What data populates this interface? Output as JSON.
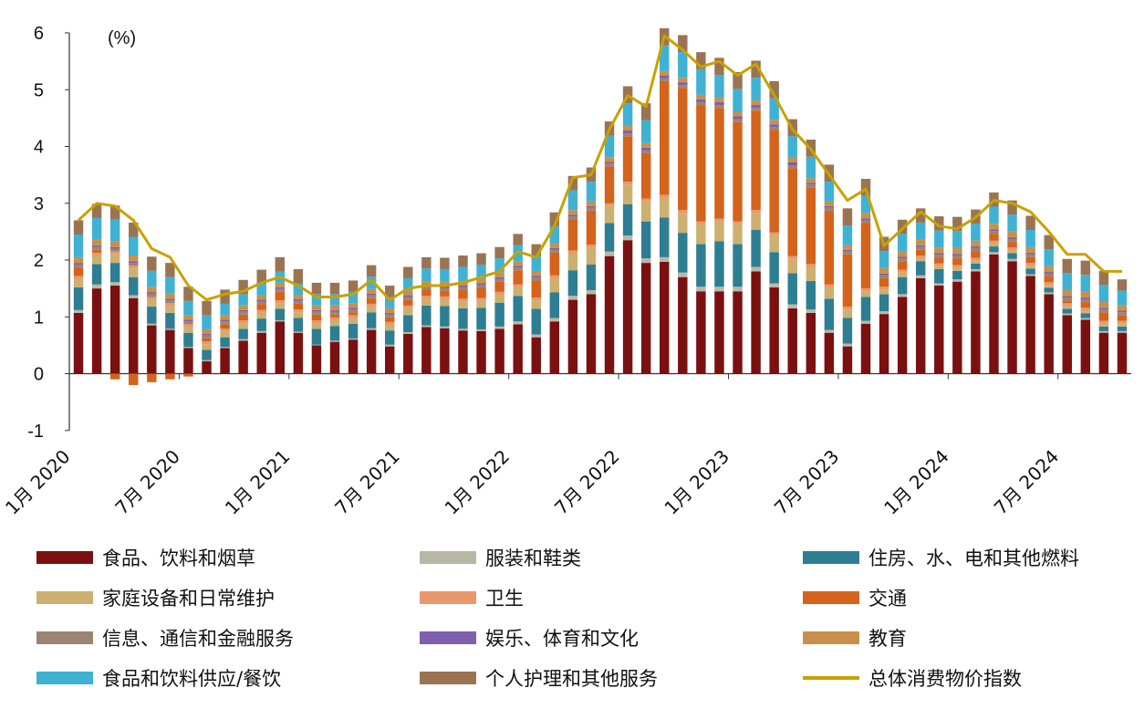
{
  "chart_data": {
    "type": "bar",
    "stacked": true,
    "unit": "(%)",
    "ylim": [
      -1,
      6
    ],
    "yticks": [
      -1,
      0,
      1,
      2,
      3,
      4,
      5,
      6
    ],
    "grid": false,
    "legend_position": "bottom",
    "x_tick_labels": [
      "1月 2020",
      "7月 2020",
      "1月 2021",
      "7月 2021",
      "1月 2022",
      "7月 2022",
      "1月 2023",
      "7月 2023",
      "1月 2024",
      "7月 2024"
    ],
    "x_tick_indices": [
      0,
      6,
      12,
      18,
      24,
      30,
      36,
      42,
      48,
      54
    ],
    "months": [
      "2020-01",
      "2020-02",
      "2020-03",
      "2020-04",
      "2020-05",
      "2020-06",
      "2020-07",
      "2020-08",
      "2020-09",
      "2020-10",
      "2020-11",
      "2020-12",
      "2021-01",
      "2021-02",
      "2021-03",
      "2021-04",
      "2021-05",
      "2021-06",
      "2021-07",
      "2021-08",
      "2021-09",
      "2021-10",
      "2021-11",
      "2021-12",
      "2022-01",
      "2022-02",
      "2022-03",
      "2022-04",
      "2022-05",
      "2022-06",
      "2022-07",
      "2022-08",
      "2022-09",
      "2022-10",
      "2022-11",
      "2022-12",
      "2023-01",
      "2023-02",
      "2023-03",
      "2023-04",
      "2023-05",
      "2023-06",
      "2023-07",
      "2023-08",
      "2023-09",
      "2023-10",
      "2023-11",
      "2023-12",
      "2024-01",
      "2024-02",
      "2024-03",
      "2024-04",
      "2024-05",
      "2024-06",
      "2024-07",
      "2024-08",
      "2024-09",
      "2024-10"
    ],
    "series": [
      {
        "name": "食品、饮料和烟草",
        "color": "#7b1010",
        "values": [
          1.07,
          1.5,
          1.55,
          1.33,
          0.85,
          0.77,
          0.45,
          0.22,
          0.45,
          0.58,
          0.72,
          0.92,
          0.72,
          0.5,
          0.56,
          0.6,
          0.77,
          0.48,
          0.7,
          0.82,
          0.8,
          0.76,
          0.75,
          0.79,
          0.87,
          0.64,
          0.92,
          1.3,
          1.4,
          2.07,
          2.35,
          1.95,
          1.97,
          1.7,
          1.45,
          1.45,
          1.45,
          1.8,
          1.52,
          1.15,
          1.07,
          0.72,
          0.48,
          0.88,
          1.05,
          1.35,
          1.68,
          1.55,
          1.62,
          1.8,
          2.1,
          1.98,
          1.72,
          1.4,
          1.03,
          0.95,
          0.72,
          0.72
        ]
      },
      {
        "name": "服装和鞋类",
        "color": "#b9b8a6",
        "values": [
          0.05,
          0.07,
          0.06,
          0.05,
          0.03,
          0.02,
          0.02,
          0.02,
          0.02,
          0.03,
          0.03,
          0.02,
          0.02,
          0.01,
          0.02,
          0.02,
          0.03,
          0.03,
          0.03,
          0.03,
          0.03,
          0.03,
          0.03,
          0.04,
          0.05,
          0.05,
          0.06,
          0.07,
          0.07,
          0.08,
          0.08,
          0.08,
          0.08,
          0.08,
          0.08,
          0.08,
          0.08,
          0.08,
          0.07,
          0.07,
          0.06,
          0.05,
          0.05,
          0.05,
          0.05,
          0.05,
          0.05,
          0.04,
          0.04,
          0.04,
          0.04,
          0.04,
          0.03,
          0.03,
          0.03,
          0.03,
          0.03,
          0.03
        ]
      },
      {
        "name": "住房、水、电和其他燃料",
        "color": "#2e7e93",
        "values": [
          0.4,
          0.36,
          0.34,
          0.32,
          0.3,
          0.28,
          0.25,
          0.18,
          0.17,
          0.18,
          0.22,
          0.2,
          0.24,
          0.28,
          0.26,
          0.26,
          0.28,
          0.25,
          0.3,
          0.35,
          0.36,
          0.36,
          0.38,
          0.42,
          0.45,
          0.45,
          0.45,
          0.45,
          0.45,
          0.5,
          0.55,
          0.65,
          0.7,
          0.7,
          0.75,
          0.8,
          0.75,
          0.65,
          0.55,
          0.55,
          0.5,
          0.55,
          0.45,
          0.42,
          0.3,
          0.3,
          0.25,
          0.25,
          0.15,
          0.1,
          0.1,
          0.1,
          0.1,
          0.08,
          0.08,
          0.08,
          0.08,
          0.08
        ]
      },
      {
        "name": "家庭设备和日常维护",
        "color": "#ccb070",
        "values": [
          0.15,
          0.15,
          0.15,
          0.15,
          0.12,
          0.12,
          0.1,
          0.1,
          0.1,
          0.1,
          0.1,
          0.1,
          0.1,
          0.1,
          0.1,
          0.1,
          0.1,
          0.1,
          0.12,
          0.12,
          0.12,
          0.12,
          0.12,
          0.14,
          0.15,
          0.15,
          0.25,
          0.3,
          0.3,
          0.3,
          0.35,
          0.35,
          0.35,
          0.35,
          0.35,
          0.35,
          0.35,
          0.3,
          0.3,
          0.25,
          0.25,
          0.2,
          0.15,
          0.1,
          0.08,
          0.08,
          0.05,
          0.05,
          0.05,
          0.05,
          0.05,
          0.05,
          0.05,
          0.05,
          0.05,
          0.05,
          0.05,
          0.05
        ]
      },
      {
        "name": "卫生",
        "color": "#e8986a",
        "values": [
          0.05,
          0.05,
          0.05,
          0.05,
          0.05,
          0.05,
          0.05,
          0.05,
          0.05,
          0.05,
          0.05,
          0.05,
          0.05,
          0.05,
          0.05,
          0.05,
          0.05,
          0.05,
          0.05,
          0.05,
          0.05,
          0.05,
          0.05,
          0.05,
          0.05,
          0.05,
          0.05,
          0.05,
          0.05,
          0.05,
          0.05,
          0.05,
          0.05,
          0.05,
          0.05,
          0.05,
          0.05,
          0.05,
          0.05,
          0.05,
          0.05,
          0.05,
          0.05,
          0.05,
          0.05,
          0.05,
          0.05,
          0.05,
          0.05,
          0.05,
          0.05,
          0.05,
          0.05,
          0.05,
          0.05,
          0.05,
          0.05,
          0.05
        ]
      },
      {
        "name": "交通",
        "color": "#d4631c",
        "values": [
          0.15,
          0.05,
          -0.1,
          -0.2,
          -0.15,
          -0.1,
          -0.05,
          0.05,
          0.08,
          0.1,
          0.1,
          0.15,
          0.1,
          0.1,
          0.05,
          0.05,
          0.1,
          0.08,
          0.1,
          0.1,
          0.1,
          0.15,
          0.18,
          0.18,
          0.25,
          0.3,
          0.4,
          0.55,
          0.6,
          0.65,
          0.8,
          0.8,
          2.0,
          2.15,
          2.05,
          1.95,
          1.75,
          1.75,
          1.8,
          1.55,
          1.35,
          1.3,
          0.92,
          1.15,
          0.15,
          0.15,
          0.1,
          0.1,
          0.12,
          0.12,
          0.12,
          0.1,
          0.1,
          0.1,
          0.05,
          0.1,
          0.15,
          0.1
        ]
      },
      {
        "name": "信息、通信和金融服务",
        "color": "#9c8470",
        "values": [
          0.05,
          0.05,
          0.05,
          0.05,
          0.05,
          0.05,
          0.05,
          0.05,
          0.05,
          0.05,
          0.05,
          0.05,
          0.05,
          0.05,
          0.05,
          0.05,
          0.05,
          0.05,
          0.05,
          0.05,
          0.05,
          0.05,
          0.05,
          0.05,
          0.05,
          0.05,
          0.05,
          0.05,
          0.05,
          0.05,
          0.05,
          0.05,
          0.05,
          0.05,
          0.05,
          0.05,
          0.05,
          0.05,
          0.05,
          0.05,
          0.05,
          0.05,
          0.05,
          0.05,
          0.05,
          0.05,
          0.05,
          0.05,
          0.05,
          0.05,
          0.05,
          0.05,
          0.05,
          0.05,
          0.05,
          0.05,
          0.05,
          0.05
        ]
      },
      {
        "name": "娱乐、体育和文化",
        "color": "#7f5fae",
        "values": [
          0.03,
          0.03,
          0.03,
          0.03,
          0.03,
          0.03,
          0.03,
          0.03,
          0.03,
          0.03,
          0.03,
          0.03,
          0.03,
          0.03,
          0.03,
          0.03,
          0.03,
          0.03,
          0.03,
          0.03,
          0.03,
          0.03,
          0.03,
          0.03,
          0.03,
          0.03,
          0.03,
          0.03,
          0.03,
          0.03,
          0.05,
          0.05,
          0.05,
          0.05,
          0.05,
          0.05,
          0.05,
          0.05,
          0.05,
          0.05,
          0.03,
          0.03,
          0.03,
          0.03,
          0.03,
          0.03,
          0.03,
          0.03,
          0.03,
          0.03,
          0.03,
          0.03,
          0.03,
          0.03,
          0.03,
          0.03,
          0.03,
          0.03
        ]
      },
      {
        "name": "教育",
        "color": "#c8904a",
        "values": [
          0.1,
          0.1,
          0.1,
          0.1,
          0.1,
          0.1,
          0.08,
          0.08,
          0.08,
          0.08,
          0.08,
          0.08,
          0.08,
          0.08,
          0.08,
          0.08,
          0.08,
          0.08,
          0.08,
          0.08,
          0.08,
          0.08,
          0.08,
          0.08,
          0.08,
          0.08,
          0.08,
          0.08,
          0.08,
          0.08,
          0.08,
          0.08,
          0.08,
          0.08,
          0.08,
          0.08,
          0.08,
          0.08,
          0.08,
          0.08,
          0.08,
          0.08,
          0.08,
          0.1,
          0.1,
          0.1,
          0.1,
          0.1,
          0.1,
          0.1,
          0.1,
          0.1,
          0.1,
          0.1,
          0.1,
          0.1,
          0.1,
          0.1
        ]
      },
      {
        "name": "食品和饮料供应/餐饮",
        "color": "#3fb2d4",
        "values": [
          0.4,
          0.38,
          0.38,
          0.33,
          0.28,
          0.28,
          0.25,
          0.25,
          0.2,
          0.2,
          0.2,
          0.2,
          0.2,
          0.2,
          0.2,
          0.2,
          0.22,
          0.2,
          0.22,
          0.22,
          0.22,
          0.25,
          0.25,
          0.25,
          0.28,
          0.28,
          0.3,
          0.35,
          0.35,
          0.38,
          0.4,
          0.4,
          0.45,
          0.45,
          0.45,
          0.4,
          0.4,
          0.4,
          0.38,
          0.38,
          0.38,
          0.35,
          0.35,
          0.3,
          0.3,
          0.3,
          0.3,
          0.3,
          0.3,
          0.3,
          0.3,
          0.3,
          0.3,
          0.3,
          0.3,
          0.3,
          0.3,
          0.25
        ]
      },
      {
        "name": "个人护理和其他服务",
        "color": "#9a7452",
        "values": [
          0.25,
          0.25,
          0.25,
          0.25,
          0.25,
          0.25,
          0.25,
          0.25,
          0.25,
          0.25,
          0.25,
          0.25,
          0.25,
          0.2,
          0.2,
          0.2,
          0.2,
          0.2,
          0.2,
          0.2,
          0.2,
          0.2,
          0.2,
          0.2,
          0.2,
          0.2,
          0.25,
          0.25,
          0.25,
          0.25,
          0.3,
          0.3,
          0.3,
          0.3,
          0.3,
          0.3,
          0.3,
          0.3,
          0.3,
          0.3,
          0.3,
          0.3,
          0.3,
          0.3,
          0.25,
          0.25,
          0.25,
          0.25,
          0.25,
          0.25,
          0.25,
          0.25,
          0.25,
          0.25,
          0.25,
          0.25,
          0.25,
          0.2
        ]
      }
    ],
    "line": {
      "name": "总体消费物价指数",
      "color": "#c9a100",
      "values": [
        2.7,
        3.0,
        2.95,
        2.7,
        2.2,
        2.05,
        1.55,
        1.3,
        1.4,
        1.45,
        1.6,
        1.7,
        1.55,
        1.35,
        1.35,
        1.4,
        1.65,
        1.3,
        1.5,
        1.55,
        1.55,
        1.6,
        1.7,
        1.8,
        2.15,
        2.05,
        2.6,
        3.45,
        3.5,
        4.3,
        4.9,
        4.7,
        5.95,
        5.7,
        5.4,
        5.5,
        5.25,
        5.45,
        4.9,
        4.3,
        3.95,
        3.5,
        3.05,
        3.25,
        2.25,
        2.55,
        2.85,
        2.6,
        2.55,
        2.75,
        3.05,
        3.0,
        2.85,
        2.5,
        2.1,
        2.1,
        1.8,
        1.8
      ]
    }
  }
}
